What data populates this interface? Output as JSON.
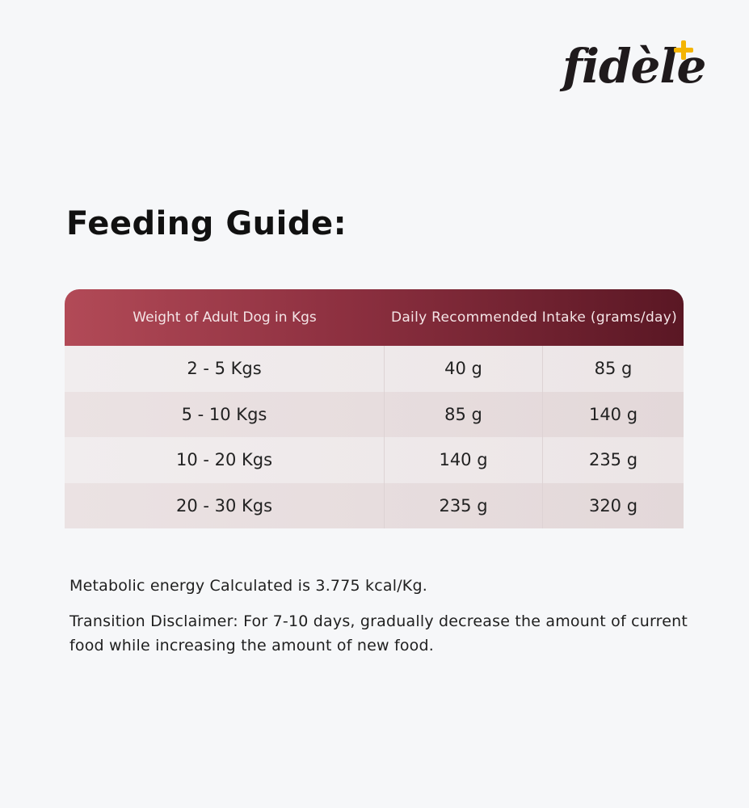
{
  "brand": {
    "logo_text": "fidèle",
    "logo_accent": "+",
    "accent_color": "#f4b400"
  },
  "title": "Feeding Guide:",
  "table": {
    "header": {
      "weight": "Weight of Adult Dog in Kgs",
      "intake": "Daily Recommended Intake (grams/day)"
    },
    "header_gradient": [
      "#b24a57",
      "#5a1724"
    ],
    "rows": [
      {
        "weight": "2 - 5 Kgs",
        "min": "40 g",
        "max": "85 g"
      },
      {
        "weight": "5 - 10 Kgs",
        "min": "85 g",
        "max": "140 g"
      },
      {
        "weight": "10 - 20 Kgs",
        "min": "140 g",
        "max": "235 g"
      },
      {
        "weight": "20 - 30 Kgs",
        "min": "235 g",
        "max": "320 g"
      }
    ]
  },
  "notes": {
    "energy": "Metabolic energy Calculated is 3.775 kcal/Kg.",
    "disclaimer": "Transition Disclaimer: For 7-10 days, gradually decrease the amount of current food while increasing the amount of new food."
  }
}
